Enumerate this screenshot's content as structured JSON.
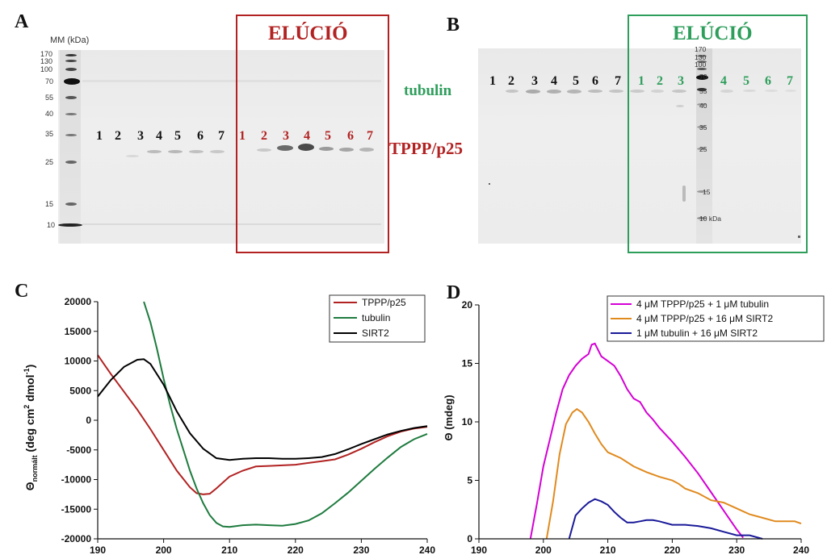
{
  "colors": {
    "red": "#b22222",
    "green": "#2e9e5b",
    "black": "#111111",
    "purple": "#d400d4",
    "orange": "#e08a1e",
    "navy": "#1a1a99"
  },
  "panelA": {
    "letter": "A",
    "mm_header": "MM (kDa)",
    "mm_values": [
      "170",
      "130",
      "100",
      "70",
      "55",
      "40",
      "35",
      "25",
      "15",
      "10"
    ],
    "lanes_black": [
      "1",
      "2",
      "3",
      "4",
      "5",
      "6",
      "7"
    ],
    "lanes_red": [
      "1",
      "2",
      "3",
      "4",
      "5",
      "6",
      "7"
    ],
    "elution_title": "ELÚCIÓ",
    "tubulin_label": "tubulin",
    "tppp_label": "TPPP/p25"
  },
  "panelB": {
    "letter": "B",
    "lanes_black": [
      "1",
      "2",
      "3",
      "4",
      "5",
      "6",
      "7"
    ],
    "lanes_green": [
      "1",
      "2",
      "3",
      "4",
      "5",
      "6",
      "7"
    ],
    "mm_values": [
      "170",
      "130",
      "100",
      "70",
      "55",
      "40",
      "35",
      "25",
      "15",
      "10 kDa"
    ],
    "elution_title": "ELÚCIÓ"
  },
  "chart_data": [
    {
      "panel": "C",
      "type": "line",
      "xlim": [
        190,
        240
      ],
      "ylim": [
        -20000,
        20000
      ],
      "xticks": [
        190,
        200,
        210,
        220,
        230,
        240
      ],
      "yticks": [
        -20000,
        -15000,
        -10000,
        -5000,
        0,
        5000,
        10000,
        15000,
        20000
      ],
      "ylabel_main": "Θ",
      "ylabel_sub": "normált",
      "ylabel_units": " (deg cm",
      "ylabel_sup2": "2",
      "ylabel_mid": " dmol",
      "ylabel_sup1": "-1",
      "ylabel_end": ")",
      "legend_position": "top-right",
      "series": [
        {
          "name": "TPPP/p25",
          "color": "#b22222",
          "x": [
            190,
            192,
            194,
            196,
            198,
            200,
            202,
            204,
            205,
            206,
            207,
            208,
            210,
            212,
            214,
            216,
            218,
            220,
            222,
            224,
            226,
            228,
            230,
            232,
            234,
            236,
            238,
            240
          ],
          "y": [
            11000,
            7800,
            4800,
            1800,
            -1500,
            -5000,
            -8500,
            -11300,
            -12300,
            -12500,
            -12400,
            -11500,
            -9500,
            -8500,
            -7800,
            -7700,
            -7600,
            -7500,
            -7200,
            -6900,
            -6600,
            -5800,
            -4800,
            -3700,
            -2700,
            -1900,
            -1400,
            -1100
          ]
        },
        {
          "name": "tubulin",
          "color": "#1e7b3e",
          "x": [
            197,
            198,
            199,
            200,
            201,
            202,
            203,
            204,
            205,
            206,
            207,
            208,
            209,
            210,
            212,
            214,
            216,
            218,
            220,
            222,
            224,
            226,
            228,
            230,
            232,
            234,
            236,
            238,
            240
          ],
          "y": [
            20000,
            16500,
            12000,
            7000,
            2500,
            -1500,
            -5000,
            -8500,
            -11500,
            -14000,
            -16000,
            -17300,
            -17900,
            -18000,
            -17700,
            -17600,
            -17700,
            -17800,
            -17500,
            -16900,
            -15700,
            -14000,
            -12200,
            -10200,
            -8200,
            -6300,
            -4500,
            -3200,
            -2300
          ]
        },
        {
          "name": "SIRT2",
          "color": "#000000",
          "x": [
            190,
            192,
            194,
            196,
            197,
            198,
            200,
            202,
            204,
            206,
            208,
            210,
            212,
            214,
            216,
            218,
            220,
            222,
            224,
            226,
            228,
            230,
            232,
            234,
            236,
            238,
            240
          ],
          "y": [
            4000,
            6800,
            9000,
            10200,
            10300,
            9500,
            6000,
            1500,
            -2200,
            -4800,
            -6400,
            -6700,
            -6500,
            -6400,
            -6400,
            -6500,
            -6500,
            -6400,
            -6200,
            -5700,
            -4900,
            -4000,
            -3200,
            -2400,
            -1800,
            -1300,
            -1000
          ]
        }
      ]
    },
    {
      "panel": "D",
      "type": "line",
      "xlim": [
        190,
        240
      ],
      "ylim": [
        0,
        20
      ],
      "xticks": [
        190,
        200,
        210,
        220,
        230,
        240
      ],
      "yticks": [
        0,
        5,
        10,
        15,
        20
      ],
      "ylabel": "Θ (mdeg)",
      "legend_position": "top-right",
      "series": [
        {
          "name": "4 μM TPPP/p25 + 1 μM tubulin",
          "color": "#d400d4",
          "x": [
            198,
            199,
            200,
            201,
            202,
            203,
            204,
            205,
            206,
            207,
            207.5,
            208,
            209,
            210,
            211,
            212,
            213,
            214,
            215,
            216,
            217,
            218,
            220,
            222,
            224,
            226,
            228,
            230,
            231
          ],
          "y": [
            0,
            3,
            6.2,
            8.5,
            10.8,
            12.8,
            14.0,
            14.8,
            15.4,
            15.8,
            16.6,
            16.7,
            15.6,
            15.2,
            14.8,
            13.9,
            12.8,
            12.0,
            11.7,
            10.8,
            10.2,
            9.5,
            8.3,
            7.0,
            5.6,
            4.0,
            2.4,
            0.8,
            0.1
          ]
        },
        {
          "name": "4 μM TPPP/p25 + 16 μM SIRT2",
          "color": "#e08a1e",
          "x": [
            200.5,
            201.5,
            202.5,
            203.5,
            204.5,
            205.2,
            206,
            207,
            208,
            209,
            210,
            212,
            214,
            216,
            218,
            220,
            221,
            222,
            224,
            226,
            228,
            230,
            232,
            234,
            236,
            238,
            239,
            240
          ],
          "y": [
            0,
            3.2,
            7.2,
            9.8,
            10.8,
            11.1,
            10.8,
            10.0,
            9.0,
            8.1,
            7.4,
            6.9,
            6.2,
            5.7,
            5.3,
            5.0,
            4.7,
            4.3,
            3.9,
            3.3,
            3.1,
            2.6,
            2.1,
            1.8,
            1.5,
            1.5,
            1.5,
            1.3
          ]
        },
        {
          "name": "1 μM tubulin + 16 μM SIRT2",
          "color": "#1a1a99",
          "x": [
            204,
            205,
            206,
            207,
            208,
            209,
            210,
            211,
            212,
            213,
            214,
            215,
            216,
            217,
            218,
            220,
            222,
            224,
            226,
            228,
            230,
            232,
            234
          ],
          "y": [
            0,
            2.0,
            2.6,
            3.1,
            3.4,
            3.2,
            2.9,
            2.3,
            1.8,
            1.4,
            1.4,
            1.5,
            1.6,
            1.6,
            1.5,
            1.2,
            1.2,
            1.1,
            0.9,
            0.6,
            0.3,
            0.3,
            0
          ]
        }
      ]
    }
  ]
}
